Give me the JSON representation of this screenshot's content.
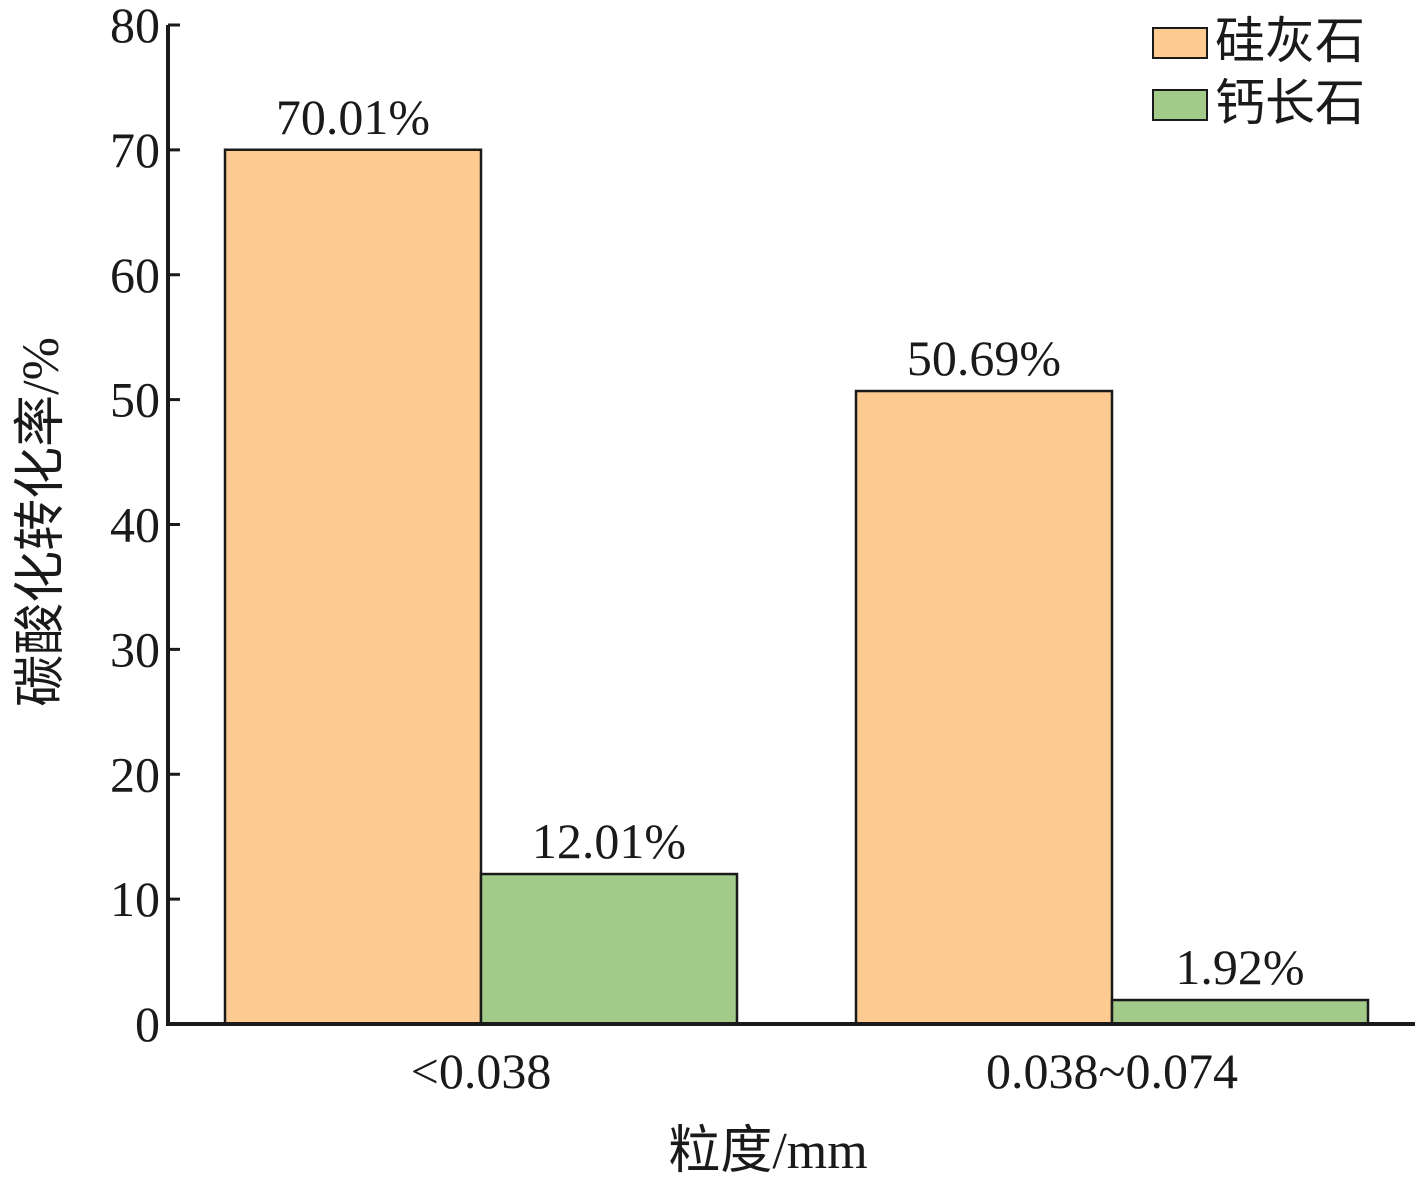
{
  "chart_data": {
    "type": "bar",
    "categories": [
      "<0.038",
      "0.038~0.074"
    ],
    "series": [
      {
        "name": "硅灰石",
        "color": "#fdcb92",
        "values": [
          70.01,
          50.69
        ],
        "labels": [
          "70.01%",
          "50.69%"
        ]
      },
      {
        "name": "钙长石",
        "color": "#a2cb8a",
        "values": [
          12.01,
          1.92
        ],
        "labels": [
          "12.01%",
          "1.92%"
        ]
      }
    ],
    "xlabel": "粒度/mm",
    "ylabel": "碳酸化转化率/%",
    "ylim": [
      0,
      80
    ],
    "yticks": [
      0,
      10,
      20,
      30,
      40,
      50,
      60,
      70,
      80
    ],
    "legend_position": "top-right",
    "grid": false
  }
}
